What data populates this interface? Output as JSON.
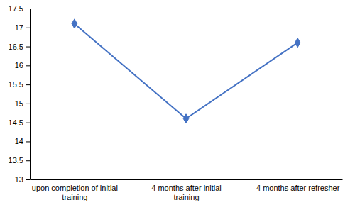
{
  "chart_data": {
    "type": "line",
    "categories": [
      "upon completion of initial\ntraining",
      "4 months after initial\ntraining",
      "4 months after refresher"
    ],
    "values": [
      17.1,
      14.6,
      16.6
    ],
    "color": "#4472C4",
    "marker": "diamond",
    "ylim": [
      13,
      17.5
    ],
    "yticks": [
      13,
      13.5,
      14,
      14.5,
      15,
      15.5,
      16,
      16.5,
      17,
      17.5
    ]
  }
}
